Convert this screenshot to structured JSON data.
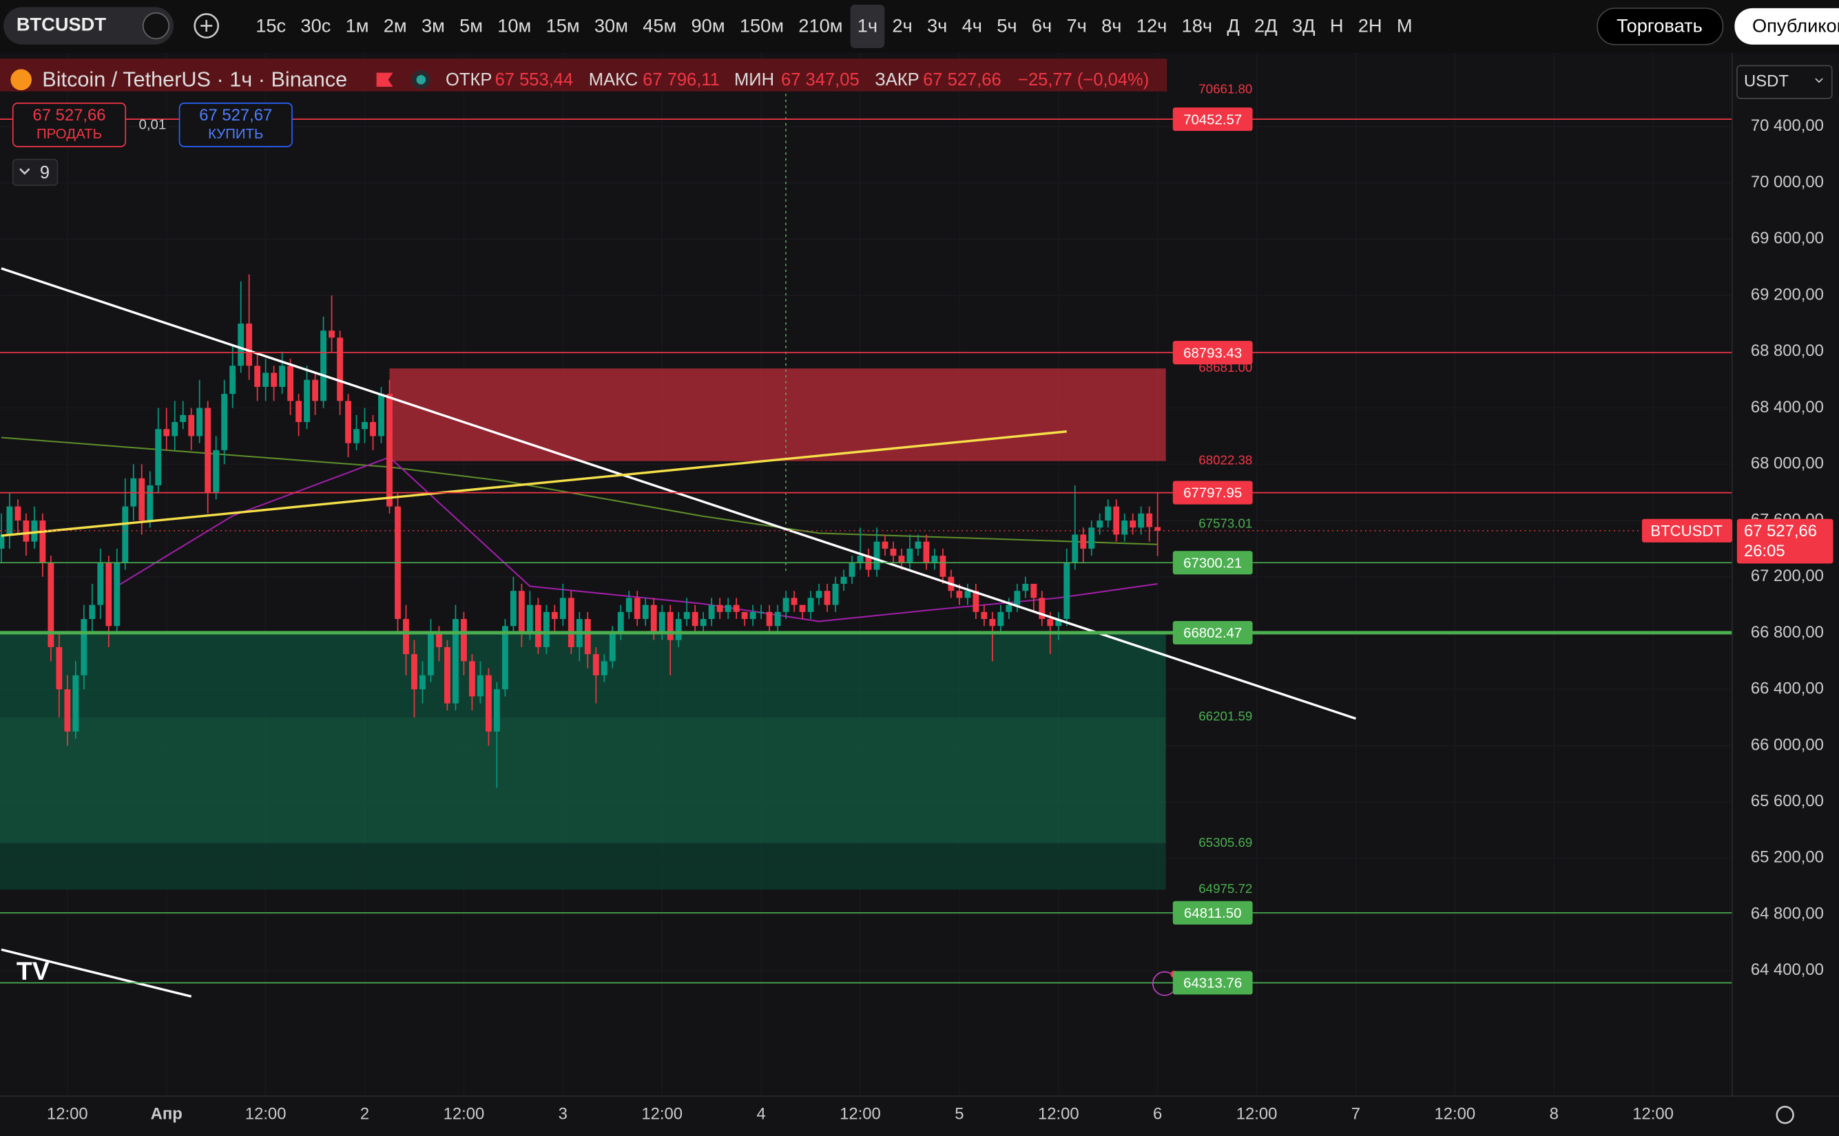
{
  "toolbar": {
    "symbol": "BTCUSDT",
    "intervals": [
      "15с",
      "30с",
      "1м",
      "2м",
      "3м",
      "5м",
      "10м",
      "15м",
      "30м",
      "45м",
      "90м",
      "150м",
      "210м",
      "1ч",
      "2ч",
      "3ч",
      "4ч",
      "5ч",
      "6ч",
      "7ч",
      "8ч",
      "12ч",
      "18ч",
      "Д",
      "2Д",
      "3Д",
      "Н",
      "2Н",
      "М"
    ],
    "selected": 13,
    "trade": "Торговать",
    "publish": "Опубликовать"
  },
  "header": {
    "title": "Bitcoin / TetherUS · 1ч · Binance",
    "open_label": "ОТКР",
    "open": "67 553,44",
    "high_label": "МАКС",
    "high": "67 796,11",
    "low_label": "МИН",
    "low": "67 347,05",
    "close_label": "ЗАКР",
    "close": "67 527,66",
    "change": "−25,77 (−0,04%)"
  },
  "trade_panel": {
    "sell_price": "67 527,66",
    "sell": "ПРОДАТЬ",
    "spread": "0,01",
    "buy_price": "67 527,67",
    "buy": "КУПИТЬ",
    "indicators": "9",
    "currency": "USDT"
  },
  "price_label": {
    "symbol": "BTCUSDT",
    "price": "67 527,66",
    "countdown": "26:05"
  },
  "chart_data": {
    "type": "candlestick",
    "up_color": "#089981",
    "down_color": "#f23645",
    "ylim": [
      64175,
      70925
    ],
    "yticks": [
      {
        "value": 70400,
        "label": "70 400,00"
      },
      {
        "value": 70000,
        "label": "70 000,00"
      },
      {
        "value": 69600,
        "label": "69 600,00"
      },
      {
        "value": 69200,
        "label": "69 200,00"
      },
      {
        "value": 68800,
        "label": "68 800,00"
      },
      {
        "value": 68400,
        "label": "68 400,00"
      },
      {
        "value": 68000,
        "label": "68 000,00"
      },
      {
        "value": 67600,
        "label": "67 600,00"
      },
      {
        "value": 67200,
        "label": "67 200,00"
      },
      {
        "value": 66800,
        "label": "66 800,00"
      },
      {
        "value": 66400,
        "label": "66 400,00"
      },
      {
        "value": 66000,
        "label": "66 000,00"
      },
      {
        "value": 65600,
        "label": "65 600,00"
      },
      {
        "value": 65200,
        "label": "65 200,00"
      },
      {
        "value": 64800,
        "label": "64 800,00"
      },
      {
        "value": 64400,
        "label": "64 400,00"
      }
    ],
    "xticks": [
      {
        "value": 8,
        "label": "12:00"
      },
      {
        "value": 20,
        "label": "Апр"
      },
      {
        "value": 32,
        "label": "12:00"
      },
      {
        "value": 44,
        "label": "2"
      },
      {
        "value": 56,
        "label": "12:00"
      },
      {
        "value": 68,
        "label": "3"
      },
      {
        "value": 80,
        "label": "12:00"
      },
      {
        "value": 92,
        "label": "4"
      },
      {
        "value": 104,
        "label": "12:00"
      },
      {
        "value": 116,
        "label": "5"
      },
      {
        "value": 128,
        "label": "12:00"
      },
      {
        "value": 140,
        "label": "6"
      },
      {
        "value": 152,
        "label": "12:00"
      },
      {
        "value": 164,
        "label": "7"
      },
      {
        "value": 176,
        "label": "12:00"
      },
      {
        "value": 188,
        "label": "8"
      },
      {
        "value": 200,
        "label": "12:00"
      }
    ],
    "candles": [
      [
        67400,
        67650,
        67300,
        67500
      ],
      [
        67500,
        67800,
        67400,
        67700
      ],
      [
        67700,
        67750,
        67500,
        67600
      ],
      [
        67600,
        67650,
        67350,
        67450
      ],
      [
        67450,
        67700,
        67400,
        67600
      ],
      [
        67600,
        67650,
        67200,
        67300
      ],
      [
        67300,
        67350,
        66600,
        66700
      ],
      [
        66700,
        66800,
        66200,
        66400
      ],
      [
        66400,
        66500,
        66000,
        66100
      ],
      [
        66100,
        66600,
        66050,
        66500
      ],
      [
        66500,
        67000,
        66400,
        66900
      ],
      [
        66900,
        67150,
        66800,
        67000
      ],
      [
        67000,
        67400,
        66900,
        67300
      ],
      [
        67300,
        67350,
        66700,
        66850
      ],
      [
        66850,
        67400,
        66800,
        67300
      ],
      [
        67300,
        67900,
        67250,
        67700
      ],
      [
        67700,
        68000,
        67600,
        67900
      ],
      [
        67900,
        68000,
        67500,
        67600
      ],
      [
        67600,
        67950,
        67550,
        67850
      ],
      [
        67850,
        68400,
        67800,
        68250
      ],
      [
        68250,
        68400,
        68100,
        68200
      ],
      [
        68200,
        68450,
        68100,
        68300
      ],
      [
        68300,
        68450,
        68250,
        68350
      ],
      [
        68350,
        68400,
        68100,
        68200
      ],
      [
        68200,
        68600,
        68150,
        68400
      ],
      [
        68400,
        68450,
        67650,
        67800
      ],
      [
        67800,
        68200,
        67750,
        68100
      ],
      [
        68100,
        68600,
        68000,
        68500
      ],
      [
        68500,
        68850,
        68400,
        68700
      ],
      [
        68700,
        69300,
        68650,
        69000
      ],
      [
        69000,
        69350,
        68600,
        68700
      ],
      [
        68700,
        68800,
        68450,
        68550
      ],
      [
        68550,
        68750,
        68450,
        68650
      ],
      [
        68650,
        68700,
        68450,
        68550
      ],
      [
        68550,
        68800,
        68500,
        68700
      ],
      [
        68700,
        68750,
        68350,
        68450
      ],
      [
        68450,
        68500,
        68200,
        68300
      ],
      [
        68300,
        68700,
        68250,
        68600
      ],
      [
        68600,
        68650,
        68350,
        68450
      ],
      [
        68450,
        69050,
        68400,
        68950
      ],
      [
        68950,
        69200,
        68800,
        68900
      ],
      [
        68900,
        68950,
        68350,
        68450
      ],
      [
        68450,
        68500,
        68050,
        68150
      ],
      [
        68150,
        68350,
        68100,
        68250
      ],
      [
        68250,
        68400,
        68150,
        68300
      ],
      [
        68300,
        68350,
        68100,
        68200
      ],
      [
        68200,
        68550,
        68150,
        68500
      ],
      [
        68500,
        68600,
        67650,
        67700
      ],
      [
        67700,
        67800,
        66800,
        66900
      ],
      [
        66900,
        67000,
        66500,
        66650
      ],
      [
        66650,
        66750,
        66200,
        66400
      ],
      [
        66400,
        66600,
        66300,
        66500
      ],
      [
        66500,
        66900,
        66450,
        66800
      ],
      [
        66800,
        66850,
        66600,
        66700
      ],
      [
        66700,
        66750,
        66250,
        66300
      ],
      [
        66300,
        67000,
        66250,
        66900
      ],
      [
        66900,
        66950,
        66500,
        66600
      ],
      [
        66600,
        66650,
        66250,
        66350
      ],
      [
        66350,
        66600,
        66300,
        66500
      ],
      [
        66500,
        66550,
        66000,
        66100
      ],
      [
        66100,
        66450,
        65700,
        66400
      ],
      [
        66400,
        66900,
        66350,
        66850
      ],
      [
        66850,
        67200,
        66800,
        67100
      ],
      [
        67100,
        67150,
        66700,
        66800
      ],
      [
        66800,
        67100,
        66750,
        67000
      ],
      [
        67000,
        67050,
        66650,
        66700
      ],
      [
        66700,
        67000,
        66650,
        66950
      ],
      [
        66950,
        67000,
        66800,
        66900
      ],
      [
        66900,
        67150,
        66850,
        67050
      ],
      [
        67050,
        67100,
        66650,
        66700
      ],
      [
        66700,
        66950,
        66600,
        66900
      ],
      [
        66900,
        66950,
        66550,
        66650
      ],
      [
        66650,
        66700,
        66300,
        66500
      ],
      [
        66500,
        66650,
        66450,
        66600
      ],
      [
        66600,
        66850,
        66550,
        66800
      ],
      [
        66800,
        67000,
        66750,
        66950
      ],
      [
        66950,
        67100,
        66900,
        67050
      ],
      [
        67050,
        67100,
        66850,
        66900
      ],
      [
        66900,
        67050,
        66850,
        67000
      ],
      [
        67000,
        67050,
        66750,
        66800
      ],
      [
        66800,
        67000,
        66750,
        66950
      ],
      [
        66950,
        67000,
        66500,
        66750
      ],
      [
        66750,
        66950,
        66700,
        66900
      ],
      [
        66900,
        67050,
        66850,
        66950
      ],
      [
        66950,
        67000,
        66800,
        66850
      ],
      [
        66850,
        66950,
        66800,
        66900
      ],
      [
        66900,
        67050,
        66850,
        67000
      ],
      [
        67000,
        67050,
        66900,
        66950
      ],
      [
        66950,
        67050,
        66900,
        67000
      ],
      [
        67000,
        67050,
        66900,
        66950
      ],
      [
        66950,
        66950,
        66850,
        66900
      ],
      [
        66900,
        67000,
        66850,
        66950
      ],
      [
        66950,
        67000,
        66900,
        66950
      ],
      [
        66950,
        67000,
        66800,
        66850
      ],
      [
        66850,
        67000,
        66800,
        66950
      ],
      [
        66950,
        67100,
        66900,
        67050
      ],
      [
        67050,
        67100,
        66950,
        67000
      ],
      [
        67000,
        67000,
        66900,
        66950
      ],
      [
        66950,
        67100,
        66900,
        67050
      ],
      [
        67050,
        67150,
        67000,
        67100
      ],
      [
        67100,
        67150,
        66950,
        67000
      ],
      [
        67000,
        67200,
        66950,
        67150
      ],
      [
        67150,
        67250,
        67100,
        67200
      ],
      [
        67200,
        67350,
        67150,
        67300
      ],
      [
        67300,
        67550,
        67250,
        67350
      ],
      [
        67350,
        67400,
        67200,
        67250
      ],
      [
        67250,
        67550,
        67200,
        67450
      ],
      [
        67450,
        67500,
        67350,
        67400
      ],
      [
        67400,
        67450,
        67300,
        67350
      ],
      [
        67350,
        67400,
        67250,
        67300
      ],
      [
        67300,
        67500,
        67250,
        67400
      ],
      [
        67400,
        67500,
        67350,
        67450
      ],
      [
        67450,
        67500,
        67250,
        67300
      ],
      [
        67300,
        67400,
        67250,
        67350
      ],
      [
        67350,
        67400,
        67150,
        67200
      ],
      [
        67200,
        67250,
        67050,
        67100
      ],
      [
        67100,
        67150,
        67000,
        67050
      ],
      [
        67050,
        67150,
        67000,
        67100
      ],
      [
        67100,
        67150,
        66900,
        66950
      ],
      [
        66950,
        67000,
        66850,
        66900
      ],
      [
        66900,
        66950,
        66600,
        66850
      ],
      [
        66850,
        67000,
        66800,
        66950
      ],
      [
        66950,
        67050,
        66900,
        67000
      ],
      [
        67000,
        67150,
        66950,
        67100
      ],
      [
        67100,
        67200,
        67050,
        67150
      ],
      [
        67150,
        67150,
        66950,
        67050
      ],
      [
        67050,
        67100,
        66850,
        66900
      ],
      [
        66900,
        66950,
        66650,
        66850
      ],
      [
        66850,
        66950,
        66750,
        66900
      ],
      [
        66900,
        67400,
        66850,
        67300
      ],
      [
        67300,
        67850,
        67250,
        67500
      ],
      [
        67500,
        67550,
        67300,
        67400
      ],
      [
        67400,
        67600,
        67350,
        67550
      ],
      [
        67550,
        67650,
        67500,
        67600
      ],
      [
        67600,
        67750,
        67550,
        67700
      ],
      [
        67700,
        67750,
        67450,
        67500
      ],
      [
        67500,
        67650,
        67450,
        67600
      ],
      [
        67600,
        67650,
        67500,
        67550
      ],
      [
        67550,
        67700,
        67500,
        67650
      ],
      [
        67650,
        67700,
        67450,
        67553.44
      ],
      [
        67553.44,
        67796.11,
        67347.05,
        67527.66
      ]
    ],
    "moving_averages": [
      {
        "color": "#5f8f2a",
        "x": [
          0,
          20,
          47,
          61,
          85,
          99,
          120,
          140
        ],
        "values": [
          68190,
          68100,
          67980,
          67880,
          67630,
          67510,
          67470,
          67430
        ]
      },
      {
        "color": "#a11fa8",
        "x": [
          14,
          28,
          47,
          64,
          85,
          99,
          113,
          128,
          140
        ],
        "values": [
          67133,
          67633,
          68050,
          67133,
          67008,
          66883,
          66967,
          67050,
          67150
        ]
      }
    ],
    "zones": [
      {
        "start": 47,
        "end": 141,
        "top": 68681,
        "bottom": 68022.38,
        "color": "#b22a36"
      },
      {
        "start": -1,
        "end": 141,
        "top": 66802.47,
        "bottom": 66201.59,
        "color": "#0e4a36"
      },
      {
        "start": -1,
        "end": 141,
        "top": 66201.59,
        "bottom": 65305.69,
        "color": "#12573f"
      },
      {
        "start": -1,
        "end": 141,
        "top": 65305.69,
        "bottom": 64975.72,
        "color": "#0c3b2c"
      }
    ],
    "trendlines": [
      {
        "color": "#ffffff",
        "x": [
          0,
          164
        ],
        "values": [
          69392,
          66192
        ]
      },
      {
        "color": "#f5e04a",
        "x": [
          0,
          129
        ],
        "values": [
          67492,
          68233
        ]
      },
      {
        "color": "#ffffff",
        "x": [
          0,
          23
        ],
        "values": [
          64550,
          64217
        ]
      }
    ],
    "levels": [
      {
        "price": 70452.57,
        "color": "#f23645"
      },
      {
        "price": 68793.43,
        "color": "#f23645"
      },
      {
        "price": 67797.95,
        "color": "#f23645"
      },
      {
        "price": 67300.21,
        "color": "#4caf50"
      },
      {
        "price": 66802.47,
        "color": "#4caf50"
      },
      {
        "price": {
          "value": 64811.5,
          "label": "64811.50"
        },
        "color": "#4caf50"
      },
      {
        "price": 64313.76,
        "color": "#4caf50"
      }
    ],
    "annotations": [
      {
        "price": {
          "value": 70661.8,
          "label": "70661.80"
        },
        "color": "#f23645"
      },
      {
        "price": {
          "value": 68681,
          "label": "68681.00"
        },
        "color": "#f23645"
      },
      {
        "price": 68022.38,
        "color": "#f23645"
      },
      {
        "price": 67573.01,
        "color": "#4caf50"
      },
      {
        "price": 66201.59,
        "color": "#4caf50"
      },
      {
        "price": 65305.69,
        "color": "#4caf50"
      },
      {
        "price": 64975.72,
        "color": "#4caf50"
      }
    ]
  }
}
